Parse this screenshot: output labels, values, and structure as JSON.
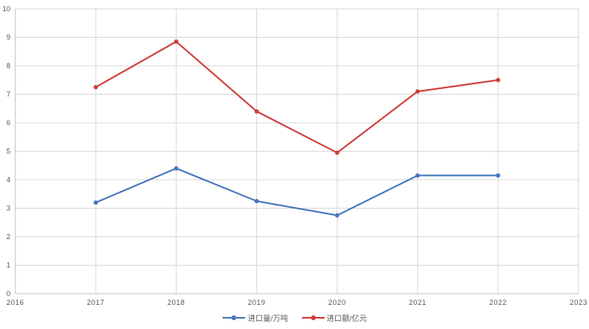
{
  "chart_data": {
    "type": "line",
    "x": [
      2017,
      2018,
      2019,
      2020,
      2021,
      2022
    ],
    "series": [
      {
        "name": "进口量/万吨",
        "color": "#4776BD",
        "values": [
          3.2,
          4.4,
          3.25,
          2.75,
          4.15,
          4.15
        ]
      },
      {
        "name": "进口额/亿元",
        "color": "#CF3E3E",
        "values": [
          7.25,
          8.85,
          6.4,
          4.95,
          7.1,
          7.5
        ]
      }
    ],
    "title": "",
    "xlabel": "",
    "ylabel": "",
    "xlim": [
      2016,
      2023
    ],
    "ylim": [
      0,
      10
    ],
    "xticks": [
      2016,
      2017,
      2018,
      2019,
      2020,
      2021,
      2022,
      2023
    ],
    "yticks": [
      0,
      1,
      2,
      3,
      4,
      5,
      6,
      7,
      8,
      9,
      10
    ],
    "grid": true,
    "marker": "circle",
    "legend_position": "bottom"
  },
  "colors": {
    "grid": "#D9D9D9",
    "axis": "#BFBFBF",
    "tick_label": "#595959",
    "background": "#FFFFFF"
  }
}
